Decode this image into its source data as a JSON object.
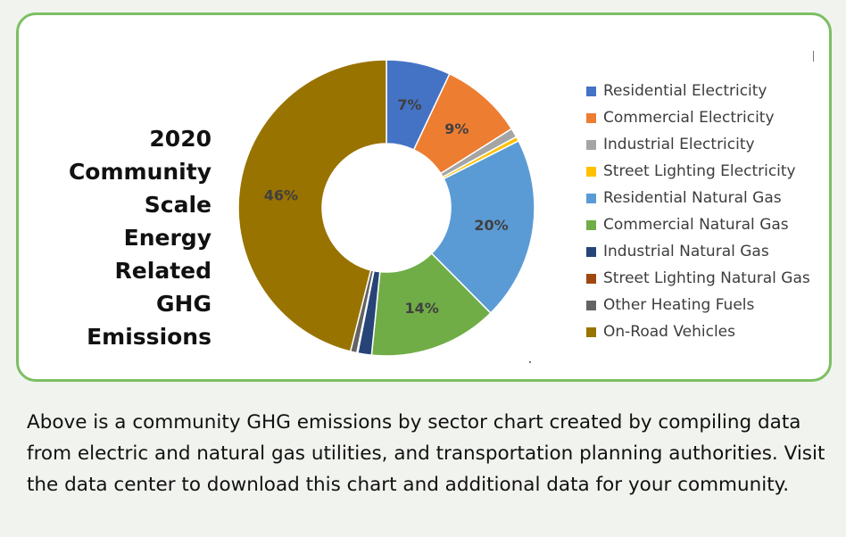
{
  "chart_data": {
    "type": "pie",
    "title": "2020\nCommunity\nScale Energy\nRelated GHG\nEmissions",
    "categories": [
      "Residential Electricity",
      "Commercial Electricity",
      "Industrial Electricity",
      "Street Lighting Electricity",
      "Residential Natural Gas",
      "Commercial Natural Gas",
      "Industrial Natural Gas",
      "Street Lighting Natural Gas",
      "Other Heating Fuels",
      "On-Road Vehicles"
    ],
    "values": [
      7,
      9,
      1,
      0.5,
      20,
      14,
      1.5,
      0.1,
      0.7,
      46
    ],
    "data_labels": [
      "7%",
      "9%",
      "",
      "",
      "20%",
      "14%",
      "",
      "",
      "",
      "46%"
    ],
    "colors": [
      "#4472c4",
      "#ed7d31",
      "#a5a5a5",
      "#ffc000",
      "#5b9bd5",
      "#70ad47",
      "#264478",
      "#9e480e",
      "#636363",
      "#997300"
    ],
    "legend_position": "right",
    "hole": "donut"
  },
  "caption": "Above is a community GHG emissions by sector chart created by compiling data from electric and natural gas utilities, and transportation planning authorities. Visit the data center to download this chart and additional data for your community."
}
